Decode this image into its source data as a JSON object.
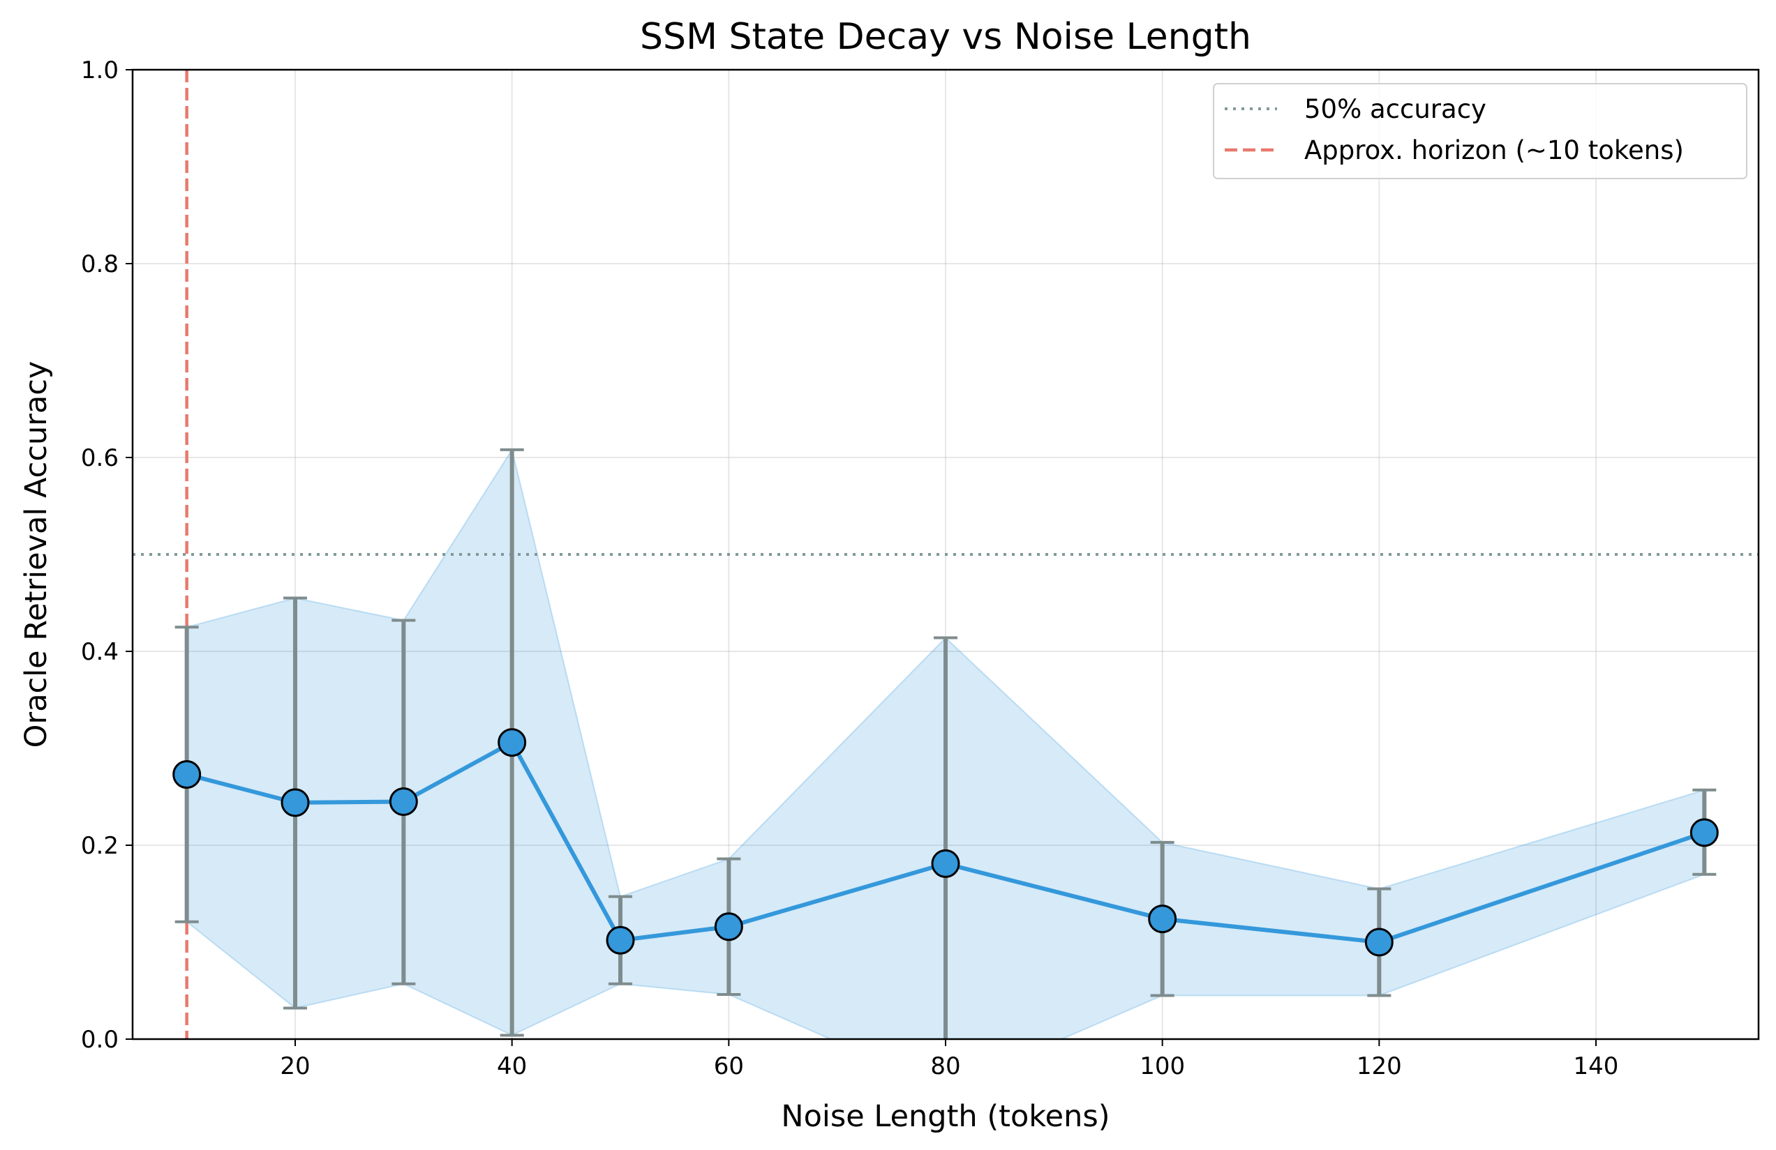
{
  "chart_data": {
    "type": "line",
    "title": "SSM State Decay vs Noise Length",
    "xlabel": "Noise Length (tokens)",
    "ylabel": "Oracle Retrieval Accuracy",
    "xlim": [
      5,
      155
    ],
    "ylim": [
      0.0,
      1.0
    ],
    "x_ticks": [
      20,
      40,
      60,
      80,
      100,
      120,
      140
    ],
    "y_ticks": [
      0.0,
      0.2,
      0.4,
      0.6,
      0.8,
      1.0
    ],
    "x_tick_labels": [
      "20",
      "40",
      "60",
      "80",
      "100",
      "120",
      "140"
    ],
    "y_tick_labels": [
      "0.0",
      "0.2",
      "0.4",
      "0.6",
      "0.8",
      "1.0"
    ],
    "grid": true,
    "legend_position": "top-right",
    "series": [
      {
        "x": [
          10,
          20,
          30,
          40,
          50,
          60,
          80,
          100,
          120,
          150
        ],
        "mean": [
          0.273,
          0.244,
          0.245,
          0.306,
          0.102,
          0.116,
          0.181,
          0.124,
          0.1,
          0.213
        ],
        "lower": [
          0.121,
          0.032,
          0.057,
          0.004,
          0.057,
          0.046,
          -0.052,
          0.045,
          0.045,
          0.17
        ],
        "upper": [
          0.425,
          0.455,
          0.432,
          0.608,
          0.147,
          0.186,
          0.414,
          0.203,
          0.155,
          0.257
        ],
        "color": "#3498db"
      }
    ],
    "reference_lines": [
      {
        "orientation": "horizontal",
        "value": 0.5,
        "style": "dotted",
        "color": "#7f9a98",
        "label": "50% accuracy"
      },
      {
        "orientation": "vertical",
        "value": 10,
        "style": "dashed",
        "color": "#e8796e",
        "label": "Approx. horizon (~10 tokens)"
      }
    ],
    "errorbar_color": "#7f8c8d"
  }
}
